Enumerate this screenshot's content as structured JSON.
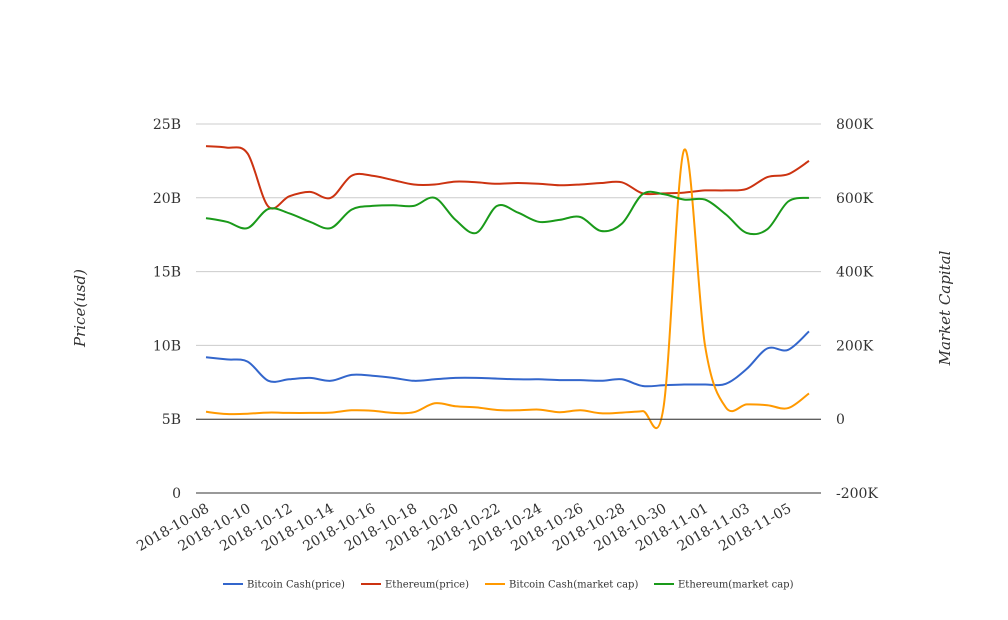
{
  "chart_data": {
    "type": "line",
    "title": "",
    "xlabel": "",
    "ylabel_left": "Price(usd)",
    "ylabel_right": "Market Capital",
    "x_tick_labels": [
      "2018-10-08",
      "2018-10-10",
      "2018-10-12",
      "2018-10-14",
      "2018-10-16",
      "2018-10-18",
      "2018-10-20",
      "2018-10-22",
      "2018-10-24",
      "2018-10-26",
      "2018-10-28",
      "2018-10-30",
      "2018-11-01",
      "2018-11-03",
      "2018-11-05"
    ],
    "x_dates": [
      "2018-10-08",
      "2018-10-09",
      "2018-10-10",
      "2018-10-11",
      "2018-10-12",
      "2018-10-13",
      "2018-10-14",
      "2018-10-15",
      "2018-10-16",
      "2018-10-17",
      "2018-10-18",
      "2018-10-19",
      "2018-10-20",
      "2018-10-21",
      "2018-10-22",
      "2018-10-23",
      "2018-10-24",
      "2018-10-25",
      "2018-10-26",
      "2018-10-27",
      "2018-10-28",
      "2018-10-29",
      "2018-10-30",
      "2018-10-31",
      "2018-11-01",
      "2018-11-02",
      "2018-11-03",
      "2018-11-04",
      "2018-11-05",
      "2018-11-06"
    ],
    "y_left": {
      "ylim": [
        0,
        25000000000
      ],
      "ticks": [
        0,
        5000000000,
        10000000000,
        15000000000,
        20000000000,
        25000000000
      ],
      "tick_labels": [
        "0",
        "5B",
        "10B",
        "15B",
        "20B",
        "25B"
      ]
    },
    "y_right": {
      "ylim": [
        -200000,
        800000
      ],
      "ticks": [
        -200000,
        0,
        200000,
        400000,
        600000,
        800000
      ],
      "tick_labels": [
        "-200K",
        "0",
        "200K",
        "400K",
        "600K",
        "800K"
      ]
    },
    "grid": true,
    "legend_position": "bottom",
    "series": [
      {
        "name": "Bitcoin Cash(price)",
        "axis": "left",
        "color": "#3366cc",
        "values": [
          9200000000,
          9050000000,
          8900000000,
          7600000000,
          7700000000,
          7800000000,
          7600000000,
          8000000000,
          7950000000,
          7800000000,
          7600000000,
          7700000000,
          7800000000,
          7800000000,
          7750000000,
          7700000000,
          7700000000,
          7650000000,
          7650000000,
          7600000000,
          7700000000,
          7250000000,
          7300000000,
          7350000000,
          7350000000,
          7400000000,
          8400000000,
          9800000000,
          9700000000,
          10950000000
        ]
      },
      {
        "name": "Ethereum(price)",
        "axis": "left",
        "color": "#cc3311",
        "values": [
          23500000000,
          23400000000,
          23000000000,
          19400000000,
          20100000000,
          20400000000,
          20000000000,
          21500000000,
          21500000000,
          21200000000,
          20900000000,
          20900000000,
          21100000000,
          21050000000,
          20950000000,
          21000000000,
          20950000000,
          20850000000,
          20900000000,
          21000000000,
          21050000000,
          20300000000,
          20300000000,
          20350000000,
          20500000000,
          20500000000,
          20600000000,
          21400000000,
          21600000000,
          22500000000
        ]
      },
      {
        "name": "Bitcoin Cash(market cap)",
        "axis": "right",
        "color": "#ff9900",
        "values": [
          20000,
          14000,
          15000,
          18000,
          17000,
          17000,
          18000,
          24000,
          23000,
          17000,
          19000,
          43000,
          35000,
          32000,
          25000,
          24000,
          26000,
          19000,
          24000,
          16000,
          18000,
          22000,
          30000,
          730000,
          200000,
          32000,
          40000,
          38000,
          30000,
          70000
        ]
      },
      {
        "name": "Ethereum(market cap)",
        "axis": "right",
        "color": "#1a9a1a",
        "values": [
          545000,
          535000,
          518000,
          570000,
          558000,
          535000,
          518000,
          568000,
          578000,
          580000,
          578000,
          600000,
          540000,
          505000,
          578000,
          560000,
          535000,
          540000,
          548000,
          510000,
          530000,
          610000,
          610000,
          595000,
          595000,
          555000,
          505000,
          515000,
          590000,
          600000
        ]
      }
    ]
  }
}
